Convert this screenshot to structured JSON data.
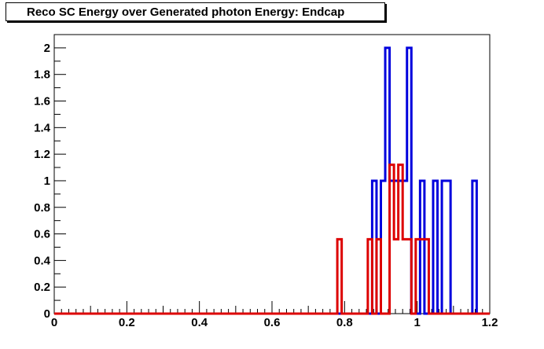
{
  "chart_data": {
    "type": "histogram-step",
    "title": "Reco SC Energy over Generated photon Energy: Endcap",
    "xlim": [
      0,
      1.2
    ],
    "ylim": [
      0,
      2.1
    ],
    "x_ticks": [
      "0",
      "0.2",
      "0.4",
      "0.6",
      "0.8",
      "1",
      "1.2"
    ],
    "y_ticks": [
      "0",
      "0.2",
      "0.4",
      "0.6",
      "0.8",
      "1",
      "1.2",
      "1.4",
      "1.6",
      "1.8",
      "2"
    ],
    "bin_width": 0.012,
    "series": [
      {
        "color": "#0000dd",
        "bins": [
          {
            "x0": 0.876,
            "x1": 0.888,
            "y": 1
          },
          {
            "x0": 0.888,
            "x1": 0.9,
            "y": 0
          },
          {
            "x0": 0.9,
            "x1": 0.912,
            "y": 1
          },
          {
            "x0": 0.912,
            "x1": 0.924,
            "y": 2
          },
          {
            "x0": 0.924,
            "x1": 0.972,
            "y": 1
          },
          {
            "x0": 0.972,
            "x1": 0.984,
            "y": 2
          },
          {
            "x0": 0.984,
            "x1": 1.008,
            "y": 0
          },
          {
            "x0": 1.008,
            "x1": 1.02,
            "y": 1
          },
          {
            "x0": 1.02,
            "x1": 1.044,
            "y": 0
          },
          {
            "x0": 1.044,
            "x1": 1.056,
            "y": 1
          },
          {
            "x0": 1.056,
            "x1": 1.068,
            "y": 0
          },
          {
            "x0": 1.068,
            "x1": 1.092,
            "y": 1
          },
          {
            "x0": 1.092,
            "x1": 1.152,
            "y": 0
          },
          {
            "x0": 1.152,
            "x1": 1.164,
            "y": 1
          }
        ]
      },
      {
        "color": "#dd0000",
        "bins": [
          {
            "x0": 0.78,
            "x1": 0.792,
            "y": 0.56
          },
          {
            "x0": 0.792,
            "x1": 0.864,
            "y": 0
          },
          {
            "x0": 0.864,
            "x1": 0.876,
            "y": 0.56
          },
          {
            "x0": 0.876,
            "x1": 0.888,
            "y": 0
          },
          {
            "x0": 0.888,
            "x1": 0.9,
            "y": 0.56
          },
          {
            "x0": 0.9,
            "x1": 0.924,
            "y": 0
          },
          {
            "x0": 0.924,
            "x1": 0.936,
            "y": 1.12
          },
          {
            "x0": 0.936,
            "x1": 0.948,
            "y": 0.56
          },
          {
            "x0": 0.948,
            "x1": 0.96,
            "y": 1.12
          },
          {
            "x0": 0.96,
            "x1": 0.984,
            "y": 0.56
          },
          {
            "x0": 0.984,
            "x1": 0.996,
            "y": 0
          },
          {
            "x0": 0.996,
            "x1": 1.032,
            "y": 0.56
          },
          {
            "x0": 1.032,
            "x1": 1.2,
            "y": 0
          }
        ]
      }
    ]
  }
}
